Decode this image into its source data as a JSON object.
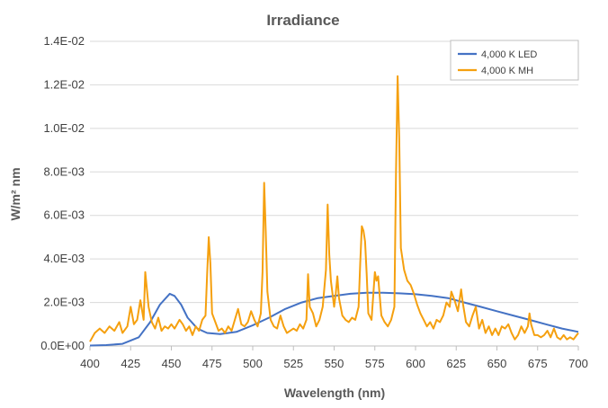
{
  "chart_data": {
    "type": "line",
    "title": "Irradiance",
    "xlabel": "Wavelength (nm)",
    "ylabel": "W/m² nm",
    "xlim": [
      400,
      700
    ],
    "ylim": [
      0,
      0.014
    ],
    "x_ticks": [
      "400",
      "425",
      "450",
      "475",
      "500",
      "525",
      "550",
      "575",
      "600",
      "625",
      "650",
      "675",
      "700"
    ],
    "y_ticks": [
      "0.0E+00",
      "2.0E-03",
      "4.0E-03",
      "6.0E-03",
      "8.0E-03",
      "1.0E-02",
      "1.2E-02",
      "1.4E-02"
    ],
    "grid": true,
    "legend_position": "top-right",
    "series": [
      {
        "name": "4,000 K LED",
        "color": "#4472c4",
        "points": [
          [
            400,
            2e-05
          ],
          [
            410,
            4e-05
          ],
          [
            420,
            0.0001
          ],
          [
            430,
            0.0004
          ],
          [
            437,
            0.0011
          ],
          [
            443,
            0.0019
          ],
          [
            449,
            0.0024
          ],
          [
            452,
            0.0023
          ],
          [
            456,
            0.0019
          ],
          [
            460,
            0.0013
          ],
          [
            466,
            0.0008
          ],
          [
            472,
            0.0006
          ],
          [
            480,
            0.00055
          ],
          [
            490,
            0.00065
          ],
          [
            500,
            0.00095
          ],
          [
            510,
            0.0013
          ],
          [
            520,
            0.0017
          ],
          [
            530,
            0.002
          ],
          [
            540,
            0.0022
          ],
          [
            550,
            0.0023
          ],
          [
            560,
            0.0024
          ],
          [
            570,
            0.00245
          ],
          [
            580,
            0.00245
          ],
          [
            590,
            0.00242
          ],
          [
            600,
            0.00238
          ],
          [
            610,
            0.0023
          ],
          [
            620,
            0.0022
          ],
          [
            630,
            0.002
          ],
          [
            640,
            0.0018
          ],
          [
            650,
            0.0016
          ],
          [
            660,
            0.0014
          ],
          [
            670,
            0.0012
          ],
          [
            680,
            0.001
          ],
          [
            690,
            0.0008
          ],
          [
            700,
            0.00065
          ]
        ]
      },
      {
        "name": "4,000 K MH",
        "color": "#f5a00f",
        "points": [
          [
            400,
            0.0002
          ],
          [
            403,
            0.0006
          ],
          [
            406,
            0.0008
          ],
          [
            409,
            0.0006
          ],
          [
            412,
            0.0009
          ],
          [
            415,
            0.0007
          ],
          [
            418,
            0.0011
          ],
          [
            420,
            0.0006
          ],
          [
            423,
            0.0009
          ],
          [
            425,
            0.0018
          ],
          [
            427,
            0.001
          ],
          [
            429,
            0.0012
          ],
          [
            431,
            0.0021
          ],
          [
            433,
            0.0012
          ],
          [
            434,
            0.0034
          ],
          [
            436,
            0.0018
          ],
          [
            438,
            0.0011
          ],
          [
            440,
            0.0008
          ],
          [
            442,
            0.0013
          ],
          [
            444,
            0.0007
          ],
          [
            446,
            0.0009
          ],
          [
            448,
            0.0008
          ],
          [
            450,
            0.001
          ],
          [
            452,
            0.0008
          ],
          [
            455,
            0.0012
          ],
          [
            457,
            0.001
          ],
          [
            459,
            0.0007
          ],
          [
            461,
            0.0009
          ],
          [
            463,
            0.0005
          ],
          [
            465,
            0.0009
          ],
          [
            467,
            0.0007
          ],
          [
            469,
            0.0012
          ],
          [
            471,
            0.0014
          ],
          [
            472,
            0.0033
          ],
          [
            473,
            0.005
          ],
          [
            474,
            0.0038
          ],
          [
            475,
            0.0015
          ],
          [
            477,
            0.0011
          ],
          [
            479,
            0.0007
          ],
          [
            481,
            0.0008
          ],
          [
            483,
            0.0006
          ],
          [
            485,
            0.0009
          ],
          [
            487,
            0.0007
          ],
          [
            489,
            0.0012
          ],
          [
            491,
            0.0017
          ],
          [
            493,
            0.001
          ],
          [
            495,
            0.0009
          ],
          [
            497,
            0.0011
          ],
          [
            499,
            0.0016
          ],
          [
            501,
            0.0012
          ],
          [
            503,
            0.0009
          ],
          [
            505,
            0.0015
          ],
          [
            506,
            0.0034
          ],
          [
            507,
            0.0075
          ],
          [
            508,
            0.0052
          ],
          [
            509,
            0.0025
          ],
          [
            511,
            0.0012
          ],
          [
            513,
            0.0009
          ],
          [
            515,
            0.0008
          ],
          [
            517,
            0.0014
          ],
          [
            519,
            0.0009
          ],
          [
            521,
            0.0006
          ],
          [
            523,
            0.0007
          ],
          [
            525,
            0.0008
          ],
          [
            527,
            0.0007
          ],
          [
            529,
            0.001
          ],
          [
            531,
            0.0008
          ],
          [
            533,
            0.0012
          ],
          [
            534,
            0.0033
          ],
          [
            535,
            0.0018
          ],
          [
            537,
            0.0015
          ],
          [
            539,
            0.0009
          ],
          [
            541,
            0.0012
          ],
          [
            543,
            0.0018
          ],
          [
            545,
            0.0035
          ],
          [
            546,
            0.0065
          ],
          [
            547,
            0.0042
          ],
          [
            548,
            0.003
          ],
          [
            550,
            0.0018
          ],
          [
            551,
            0.0024
          ],
          [
            552,
            0.0032
          ],
          [
            553,
            0.0022
          ],
          [
            555,
            0.0014
          ],
          [
            557,
            0.0012
          ],
          [
            559,
            0.0011
          ],
          [
            561,
            0.0013
          ],
          [
            563,
            0.0012
          ],
          [
            565,
            0.0018
          ],
          [
            566,
            0.0038
          ],
          [
            567,
            0.0055
          ],
          [
            568,
            0.0053
          ],
          [
            569,
            0.0048
          ],
          [
            570,
            0.0033
          ],
          [
            571,
            0.0015
          ],
          [
            573,
            0.0012
          ],
          [
            575,
            0.0034
          ],
          [
            576,
            0.003
          ],
          [
            577,
            0.0032
          ],
          [
            579,
            0.0014
          ],
          [
            581,
            0.0011
          ],
          [
            583,
            0.0009
          ],
          [
            585,
            0.0012
          ],
          [
            587,
            0.0018
          ],
          [
            588,
            0.008
          ],
          [
            589,
            0.0124
          ],
          [
            590,
            0.0095
          ],
          [
            591,
            0.0045
          ],
          [
            593,
            0.0035
          ],
          [
            595,
            0.003
          ],
          [
            597,
            0.0028
          ],
          [
            599,
            0.0024
          ],
          [
            601,
            0.0019
          ],
          [
            603,
            0.0015
          ],
          [
            605,
            0.0012
          ],
          [
            607,
            0.0009
          ],
          [
            609,
            0.0011
          ],
          [
            611,
            0.0008
          ],
          [
            613,
            0.0012
          ],
          [
            615,
            0.0011
          ],
          [
            617,
            0.0014
          ],
          [
            619,
            0.002
          ],
          [
            621,
            0.0018
          ],
          [
            622,
            0.0025
          ],
          [
            624,
            0.0021
          ],
          [
            626,
            0.0016
          ],
          [
            628,
            0.0026
          ],
          [
            629,
            0.002
          ],
          [
            631,
            0.0011
          ],
          [
            633,
            0.0009
          ],
          [
            635,
            0.0014
          ],
          [
            637,
            0.0018
          ],
          [
            639,
            0.0008
          ],
          [
            641,
            0.0012
          ],
          [
            643,
            0.0006
          ],
          [
            645,
            0.0009
          ],
          [
            647,
            0.0005
          ],
          [
            649,
            0.0008
          ],
          [
            651,
            0.0005
          ],
          [
            653,
            0.0009
          ],
          [
            655,
            0.0008
          ],
          [
            657,
            0.001
          ],
          [
            659,
            0.0006
          ],
          [
            661,
            0.0003
          ],
          [
            663,
            0.0005
          ],
          [
            665,
            0.0009
          ],
          [
            667,
            0.0006
          ],
          [
            669,
            0.0009
          ],
          [
            670,
            0.0015
          ],
          [
            671,
            0.001
          ],
          [
            673,
            0.0005
          ],
          [
            675,
            0.0005
          ],
          [
            677,
            0.0004
          ],
          [
            679,
            0.0005
          ],
          [
            681,
            0.0007
          ],
          [
            683,
            0.0004
          ],
          [
            685,
            0.0008
          ],
          [
            687,
            0.0004
          ],
          [
            689,
            0.0003
          ],
          [
            691,
            0.0005
          ],
          [
            693,
            0.0003
          ],
          [
            695,
            0.0004
          ],
          [
            697,
            0.0003
          ],
          [
            699,
            0.0005
          ],
          [
            700,
            0.0006
          ]
        ]
      }
    ]
  }
}
